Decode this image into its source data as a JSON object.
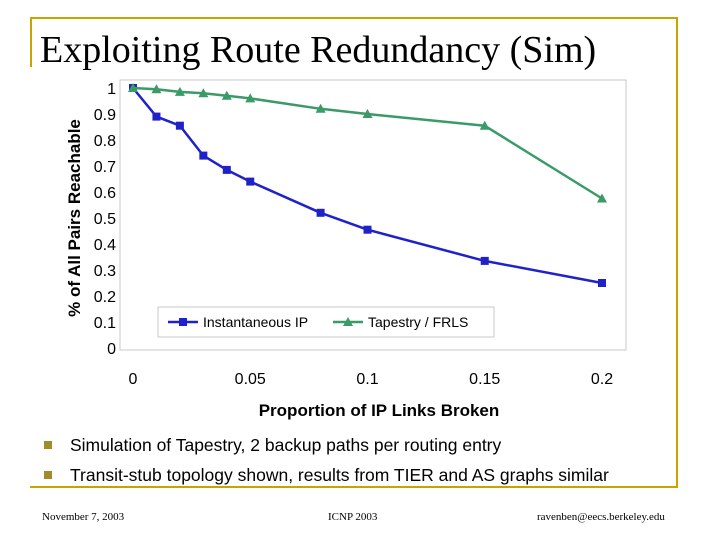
{
  "slide": {
    "title": "Exploiting Route Redundancy (Sim)",
    "bullets": [
      "Simulation of Tapestry, 2 backup paths per routing entry",
      "Transit-stub topology shown, results from TIER and AS graphs similar"
    ],
    "footer_left": "November 7, 2003",
    "footer_center": "ICNP 2003",
    "footer_right": "ravenben@eecs.berkeley.edu",
    "colors": {
      "frame": "#c9a400",
      "bullet": "#a08c2a"
    }
  },
  "chart_data": {
    "type": "line",
    "xlabel": "Proportion of IP Links Broken",
    "ylabel": "% of All Pairs Reachable",
    "xlim": [
      0,
      0.2
    ],
    "ylim": [
      0,
      1
    ],
    "xticks": [
      0,
      0.05,
      0.1,
      0.15,
      0.2
    ],
    "xtick_labels": [
      "0",
      "0.05",
      "0.1",
      "0.15",
      "0.2"
    ],
    "yticks": [
      0,
      0.1,
      0.2,
      0.3,
      0.4,
      0.5,
      0.6,
      0.7,
      0.8,
      0.9,
      1
    ],
    "ytick_labels": [
      "0",
      "0.1",
      "0.2",
      "0.3",
      "0.4",
      "0.5",
      "0.6",
      "0.7",
      "0.8",
      "0.9",
      "1"
    ],
    "grid": false,
    "legend": "bottom-center",
    "series": [
      {
        "name": "Instantaneous IP",
        "color": "#1e22c8",
        "marker": "square",
        "x": [
          0,
          0.01,
          0.02,
          0.03,
          0.04,
          0.05,
          0.08,
          0.1,
          0.15,
          0.2
        ],
        "y": [
          1.0,
          0.89,
          0.855,
          0.74,
          0.685,
          0.64,
          0.52,
          0.455,
          0.335,
          0.25
        ]
      },
      {
        "name": "Tapestry / FRLS",
        "color": "#3a9a68",
        "marker": "triangle",
        "x": [
          0,
          0.01,
          0.02,
          0.03,
          0.04,
          0.05,
          0.08,
          0.1,
          0.15,
          0.2
        ],
        "y": [
          1.0,
          0.995,
          0.985,
          0.98,
          0.97,
          0.96,
          0.92,
          0.9,
          0.855,
          0.575
        ]
      }
    ]
  }
}
